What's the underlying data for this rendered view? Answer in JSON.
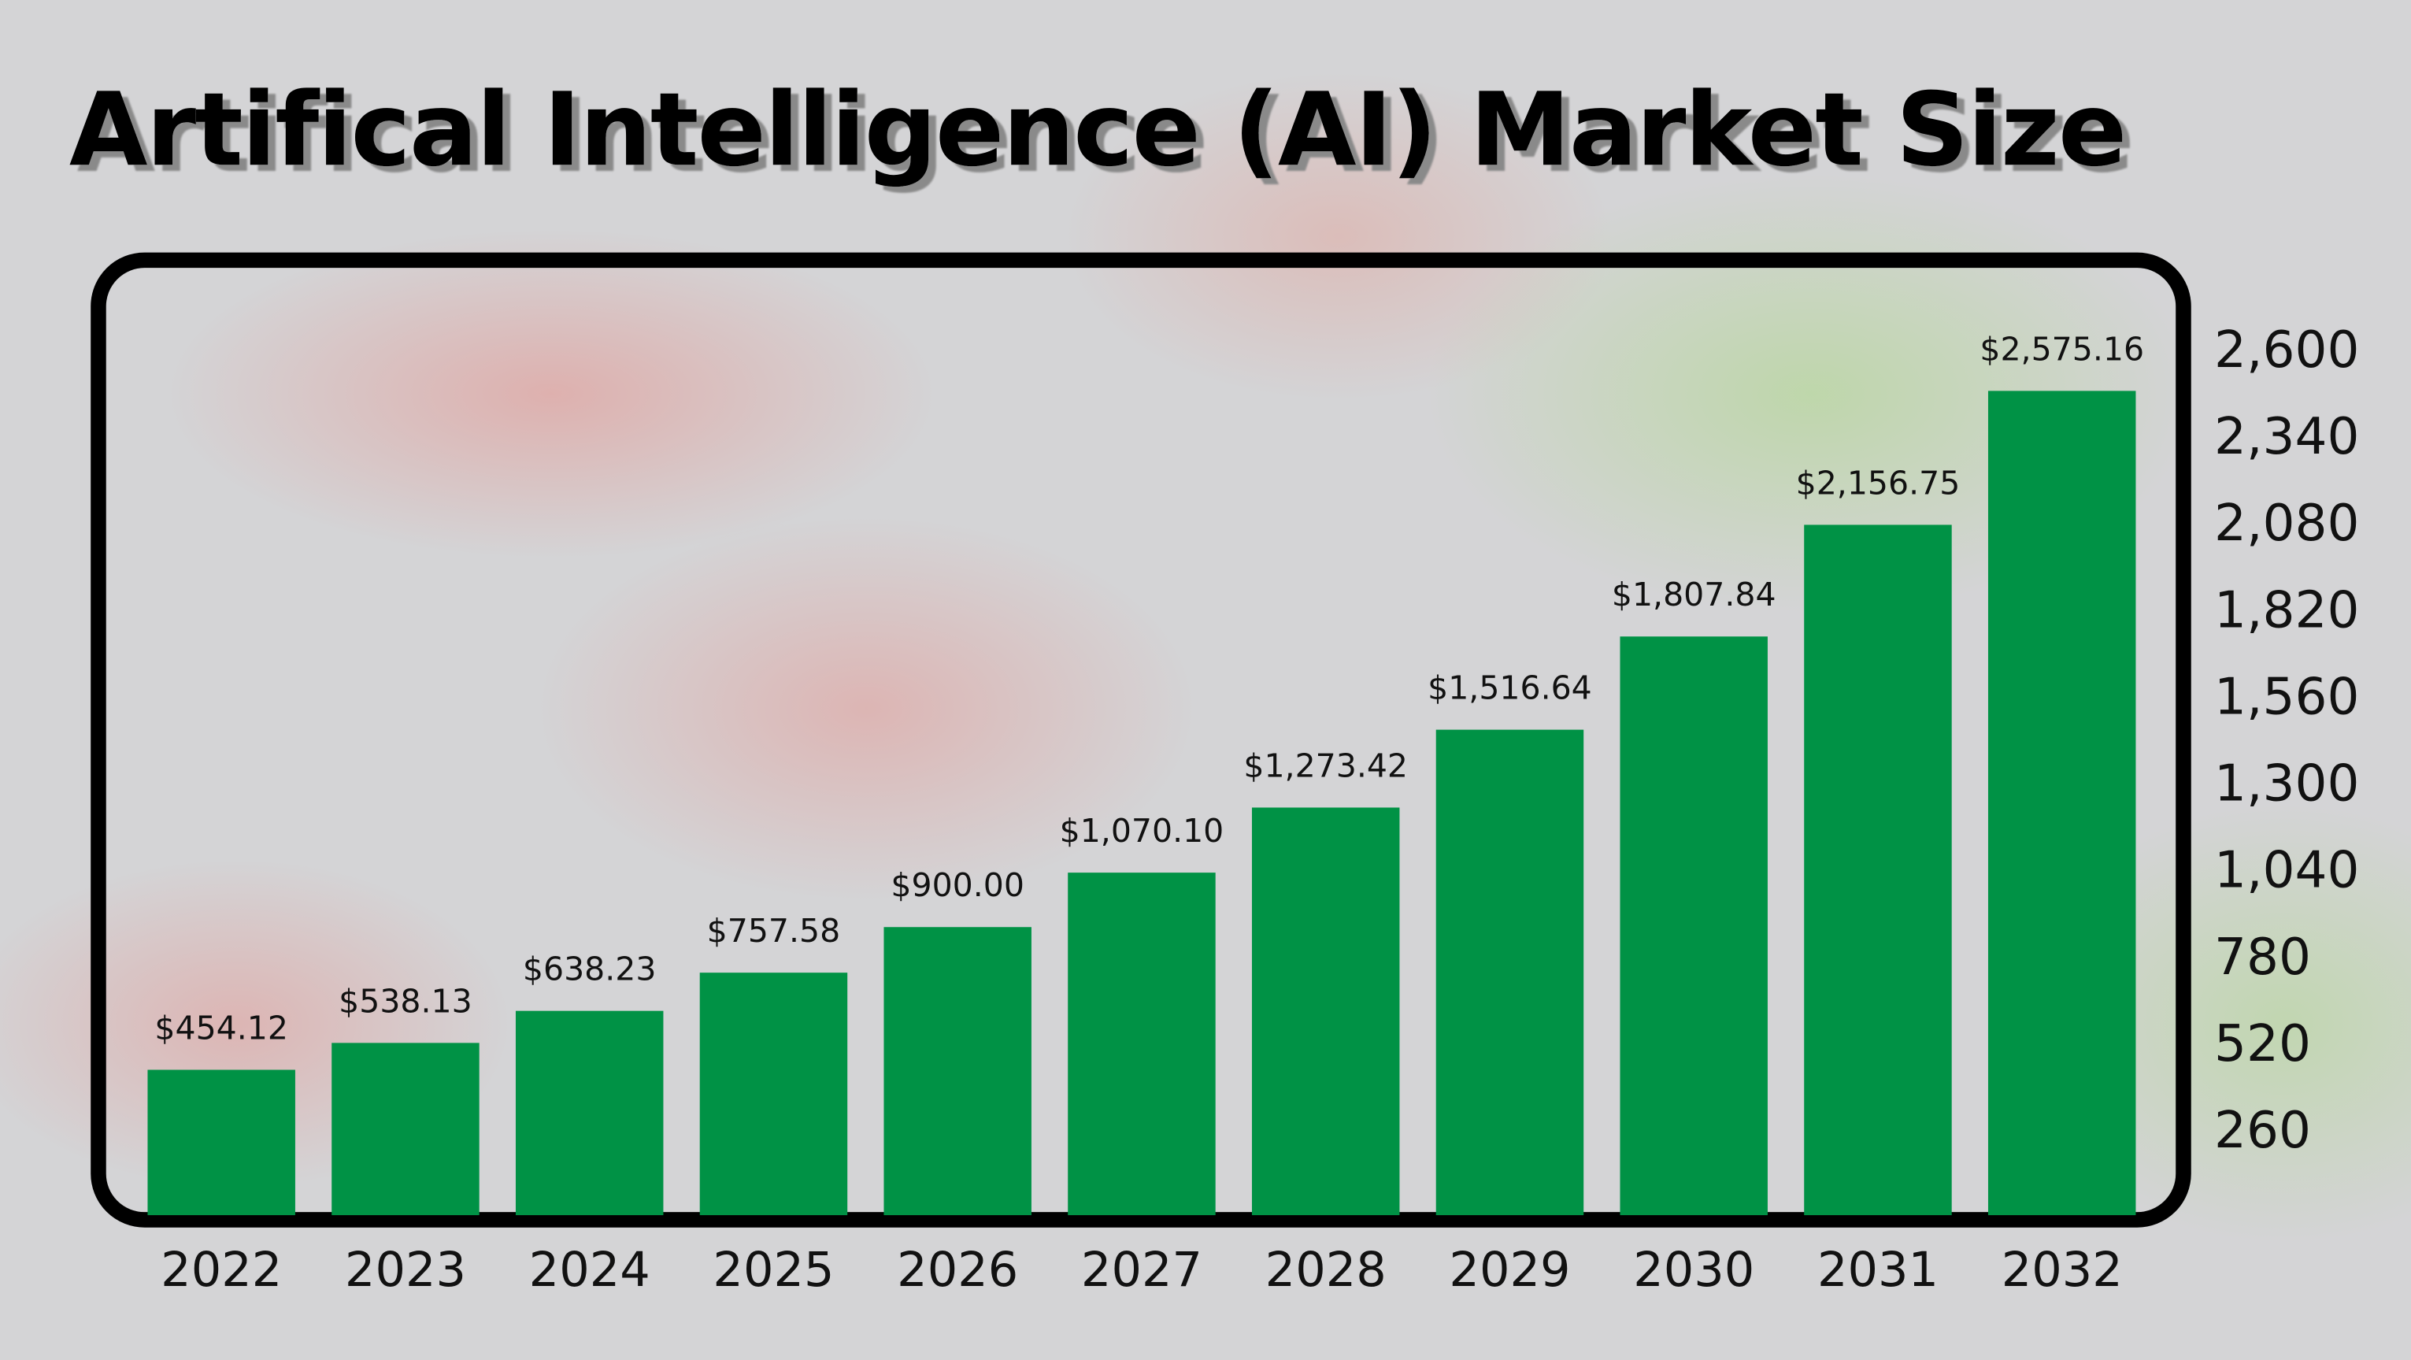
{
  "chart_data": {
    "type": "bar",
    "title": "Artifical Intelligence (AI) Market Size",
    "categories": [
      "2022",
      "2023",
      "2024",
      "2025",
      "2026",
      "2027",
      "2028",
      "2029",
      "2030",
      "2031",
      "2032"
    ],
    "values": [
      454.12,
      538.13,
      638.23,
      757.58,
      900.0,
      1070.1,
      1273.42,
      1516.64,
      1807.84,
      2156.75,
      2575.16
    ],
    "data_labels": [
      "$454.12",
      "$538.13",
      "$638.23",
      "$757.58",
      "$900.00",
      "$1,070.10",
      "$1,273.42",
      "$1,516.64",
      "$1,807.84",
      "$2,156.75",
      "$2,575.16"
    ],
    "y_ticks": [
      260,
      520,
      780,
      1040,
      1300,
      1560,
      1820,
      2080,
      2340,
      2600
    ],
    "y_tick_labels": [
      "260",
      "520",
      "780",
      "1,040",
      "1,300",
      "1,560",
      "1,820",
      "2,080",
      "2,340",
      "2,600"
    ],
    "y_axis_position": "right",
    "xlabel": "",
    "ylabel": "",
    "ylim": [
      0,
      2600
    ],
    "grid": false,
    "colors": {
      "bar": "#009245",
      "frame": "#000000",
      "title": "#000000",
      "title_shadow": "#8a8a8a"
    }
  }
}
